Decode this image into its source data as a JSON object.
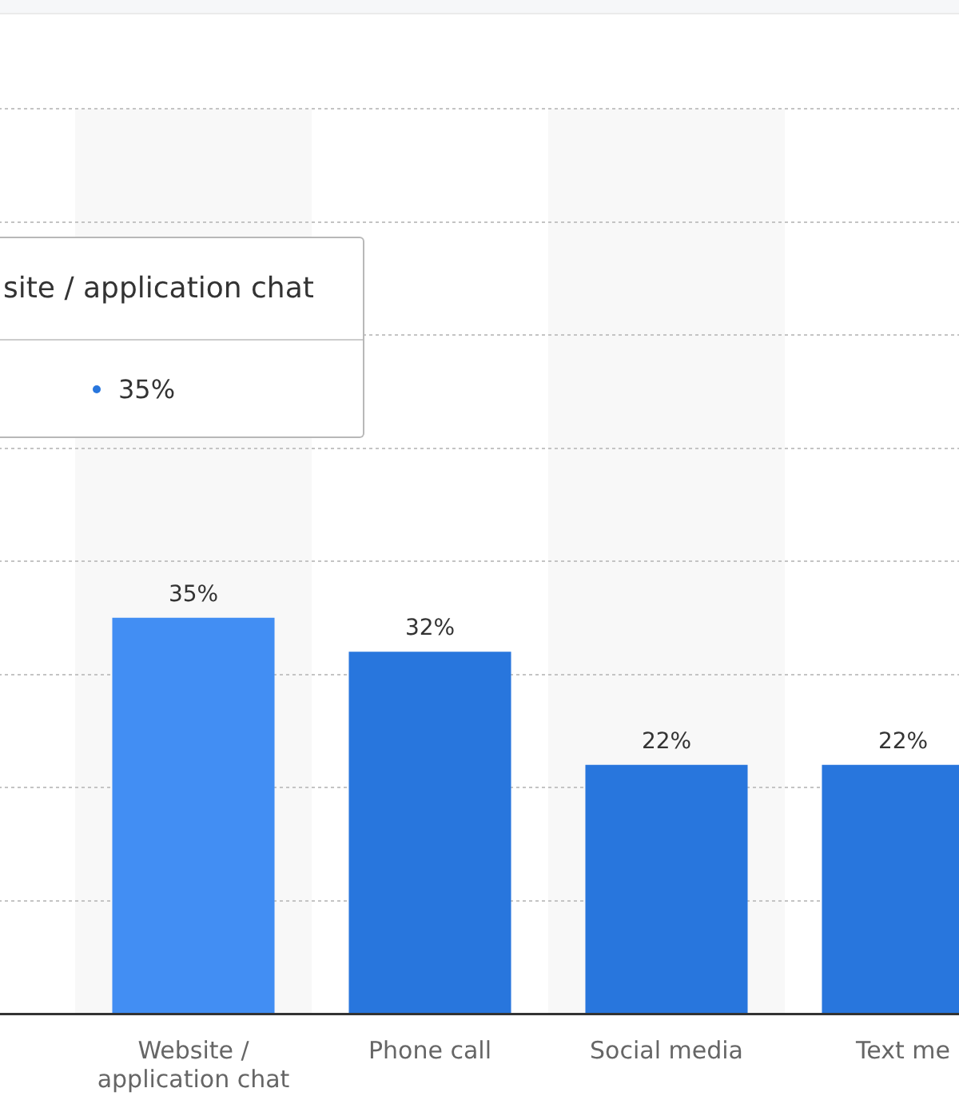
{
  "chart_data": {
    "type": "bar",
    "categories": [
      null,
      "Website / application chat",
      "Phone call",
      "Social media",
      "Text me"
    ],
    "values": [
      null,
      35,
      32,
      22,
      22
    ],
    "colors": [
      "#2876dd",
      "#428ef3",
      "#2876dd",
      "#2876dd",
      "#2876dd"
    ],
    "value_labels": [
      null,
      "35%",
      "32%",
      "22%",
      "22%"
    ],
    "ylim": [
      0,
      80
    ],
    "yticks": [
      {
        "value": 0,
        "label": null
      },
      {
        "value": 10,
        "label": null
      },
      {
        "value": 20,
        "label": null
      },
      {
        "value": 30,
        "label": null
      },
      {
        "value": 40,
        "label": null
      },
      {
        "value": 50,
        "label": null
      },
      {
        "value": 60,
        "label": null
      },
      {
        "value": 70,
        "label": null
      },
      {
        "value": 80,
        "label": null
      }
    ],
    "grid": "y",
    "legend": false,
    "tick_labels": "x",
    "annotations": [
      "site / application chat",
      "35%"
    ]
  }
}
